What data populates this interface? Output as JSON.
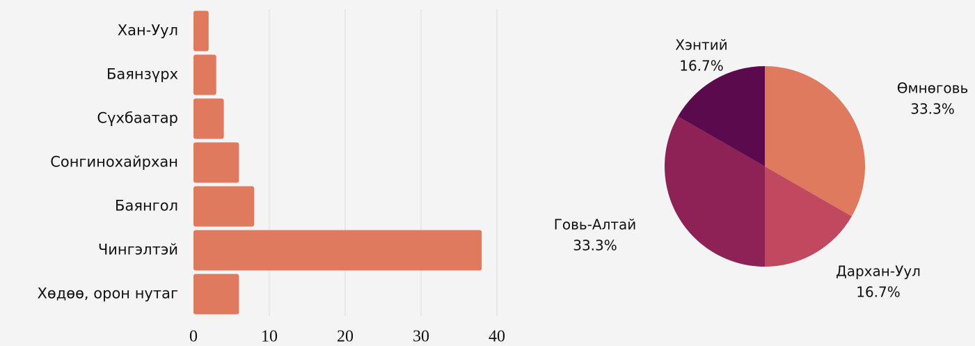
{
  "chart_data": [
    {
      "type": "bar",
      "orientation": "horizontal",
      "categories": [
        "Хан-Уул",
        "Баянзүрх",
        "Сүхбаатар",
        "Сонгинохайрхан",
        "Баянгол",
        "Чингэлтэй",
        "Хөдөө, орон нутаг"
      ],
      "values": [
        2,
        3,
        4,
        6,
        8,
        38,
        6
      ],
      "color": "#e07a5f",
      "xlim": [
        0,
        40
      ],
      "xticks": [
        0,
        10,
        20,
        30,
        40
      ],
      "grid": true
    },
    {
      "type": "pie",
      "labels": [
        "Өмнөговь",
        "Дархан-Уул",
        "Говь-Алтай",
        "Хэнтий"
      ],
      "values": [
        33.3,
        16.7,
        33.3,
        16.7
      ],
      "value_labels": [
        "33.3%",
        "16.7%",
        "33.3%",
        "16.7%"
      ],
      "colors": [
        "#e07a5f",
        "#c0485f",
        "#8e2257",
        "#5a0a4d"
      ]
    }
  ]
}
